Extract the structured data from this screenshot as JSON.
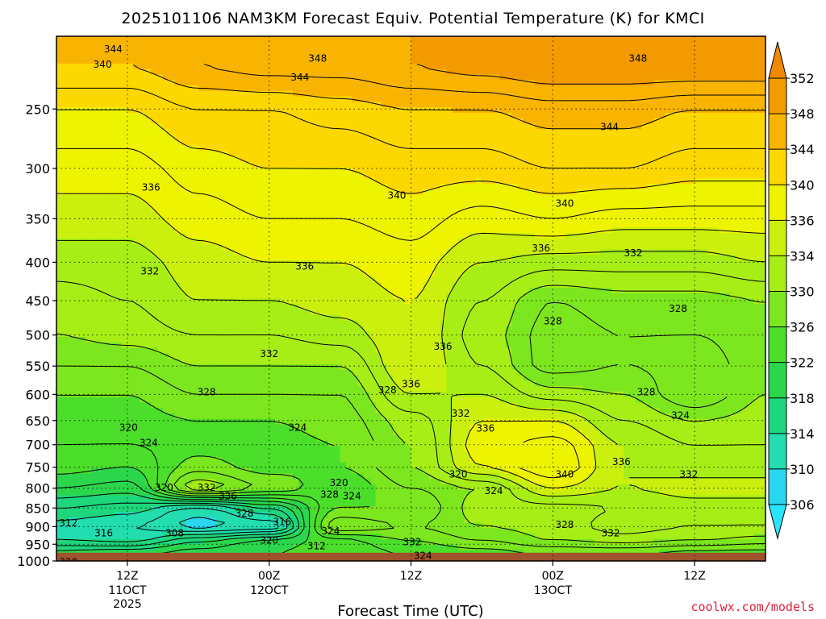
{
  "chart_data": {
    "type": "heatmap",
    "title": "2025101106 NAM3KM Forecast Equiv. Potential Temperature (K) for KMCI",
    "xlabel": "Forecast Time (UTC)",
    "ylabel": "",
    "y_scale": "log",
    "y_inverted": true,
    "ylim": [
      1000,
      200
    ],
    "y_ticks": [
      250,
      300,
      350,
      400,
      450,
      500,
      550,
      600,
      650,
      700,
      750,
      800,
      850,
      900,
      950,
      1000
    ],
    "y_tick_labels": [
      "250",
      "300",
      "350",
      "400",
      "450",
      "500",
      "550",
      "600",
      "650",
      "700",
      "750",
      "800",
      "850",
      "900",
      "950",
      "1000"
    ],
    "x_ticks": [
      {
        "hours": 6,
        "label": "12Z",
        "sublabel": "11OCT",
        "year": "2025"
      },
      {
        "hours": 18,
        "label": "00Z",
        "sublabel": "12OCT",
        "year": ""
      },
      {
        "hours": 30,
        "label": "12Z",
        "sublabel": "",
        "year": ""
      },
      {
        "hours": 42,
        "label": "00Z",
        "sublabel": "13OCT",
        "year": ""
      },
      {
        "hours": 54,
        "label": "12Z",
        "sublabel": "",
        "year": ""
      }
    ],
    "xlim": [
      0,
      60
    ],
    "grid": true,
    "colorbar": {
      "levels": [
        306,
        310,
        314,
        318,
        322,
        326,
        330,
        334,
        336,
        340,
        344,
        348,
        352
      ],
      "colors": [
        "#29e4ff",
        "#2ad5f0",
        "#23dcb0",
        "#1ed67c",
        "#2bd64c",
        "#4bde2a",
        "#7ce61e",
        "#a6ee16",
        "#cbf00e",
        "#eef400",
        "#fcd800",
        "#f8b400",
        "#f39a00",
        "#f08800"
      ]
    },
    "surface_color": "#a0522d",
    "surface_pressure": 975,
    "profiles": [
      {
        "hours": 0,
        "pressure": [
          975,
          940,
          900,
          850,
          800,
          750,
          700,
          650,
          600,
          550,
          500,
          450,
          400,
          350,
          300,
          250,
          220
        ],
        "theta_e": [
          319,
          314,
          313,
          316,
          320,
          323,
          324,
          325,
          326,
          328,
          330,
          331,
          333,
          335,
          337,
          340,
          344
        ]
      },
      {
        "hours": 6,
        "pressure": [
          975,
          940,
          900,
          850,
          800,
          750,
          700,
          650,
          600,
          550,
          500,
          450,
          400,
          350,
          300,
          250,
          220
        ],
        "theta_e": [
          320,
          313,
          312,
          315,
          319,
          322,
          324,
          325,
          326,
          328,
          331,
          332,
          333,
          335,
          337,
          340,
          344
        ]
      },
      {
        "hours": 12,
        "pressure": [
          975,
          940,
          900,
          850,
          800,
          750,
          700,
          650,
          600,
          550,
          500,
          450,
          400,
          350,
          300,
          250,
          220
        ],
        "theta_e": [
          321,
          318,
          309,
          311,
          332,
          327,
          325,
          326,
          328,
          330,
          332,
          334,
          335,
          337,
          339,
          342,
          346
        ]
      },
      {
        "hours": 18,
        "pressure": [
          975,
          940,
          900,
          850,
          800,
          750,
          700,
          650,
          600,
          550,
          500,
          450,
          400,
          350,
          300,
          250,
          220
        ],
        "theta_e": [
          322,
          321,
          310,
          316,
          328,
          325,
          325,
          326,
          328,
          330,
          332,
          334,
          336,
          338,
          340,
          342,
          347
        ]
      },
      {
        "hours": 24,
        "pressure": [
          975,
          940,
          900,
          850,
          800,
          750,
          700,
          650,
          600,
          550,
          500,
          450,
          400,
          350,
          300,
          250,
          220
        ],
        "theta_e": [
          323,
          323,
          330,
          326,
          324,
          326,
          326,
          327,
          328,
          330,
          333,
          335,
          336,
          338,
          340,
          343,
          347
        ]
      },
      {
        "hours": 30,
        "pressure": [
          975,
          940,
          900,
          850,
          800,
          750,
          700,
          650,
          600,
          550,
          500,
          450,
          400,
          350,
          300,
          250,
          220
        ],
        "theta_e": [
          324,
          326,
          328,
          326,
          328,
          330,
          330,
          331,
          334,
          336,
          336,
          336,
          337,
          339,
          341,
          344,
          348
        ]
      },
      {
        "hours": 36,
        "pressure": [
          975,
          940,
          900,
          850,
          800,
          750,
          700,
          650,
          600,
          550,
          500,
          450,
          400,
          350,
          300,
          250,
          220
        ],
        "theta_e": [
          325,
          328,
          330,
          331,
          330,
          336,
          337,
          336,
          334,
          332,
          331,
          332,
          334,
          337,
          341,
          344,
          349
        ]
      },
      {
        "hours": 42,
        "pressure": [
          975,
          940,
          900,
          850,
          800,
          750,
          700,
          650,
          600,
          550,
          500,
          450,
          400,
          350,
          300,
          250,
          220
        ],
        "theta_e": [
          326,
          330,
          331,
          331,
          336,
          340,
          339,
          336,
          331,
          327,
          327,
          328,
          333,
          338,
          342,
          345,
          350
        ]
      },
      {
        "hours": 48,
        "pressure": [
          975,
          940,
          900,
          850,
          800,
          750,
          700,
          650,
          600,
          550,
          500,
          450,
          400,
          350,
          300,
          250,
          220
        ],
        "theta_e": [
          326,
          331,
          333,
          332,
          334,
          334,
          334,
          332,
          330,
          328,
          328,
          329,
          333,
          337,
          342,
          345,
          350
        ]
      },
      {
        "hours": 54,
        "pressure": [
          975,
          940,
          900,
          850,
          800,
          750,
          700,
          650,
          600,
          550,
          500,
          450,
          400,
          350,
          300,
          250,
          220
        ],
        "theta_e": [
          325,
          330,
          332,
          333,
          335,
          333,
          332,
          330,
          326,
          327,
          328,
          329,
          333,
          337,
          341,
          344,
          350
        ]
      },
      {
        "hours": 60,
        "pressure": [
          975,
          940,
          900,
          850,
          800,
          750,
          700,
          650,
          600,
          550,
          500,
          450,
          400,
          350,
          300,
          250,
          220
        ],
        "theta_e": [
          325,
          329,
          332,
          333,
          335,
          333,
          332,
          331,
          330,
          329,
          329,
          330,
          334,
          337,
          341,
          344,
          350
        ]
      }
    ],
    "contour_labels": [
      {
        "text": "344",
        "hours": 4.8,
        "pressure": 208
      },
      {
        "text": "340",
        "hours": 3.9,
        "pressure": 218
      },
      {
        "text": "348",
        "hours": 22.1,
        "pressure": 214
      },
      {
        "text": "344",
        "hours": 20.6,
        "pressure": 227
      },
      {
        "text": "348",
        "hours": 49.2,
        "pressure": 214
      },
      {
        "text": "344",
        "hours": 46.8,
        "pressure": 264
      },
      {
        "text": "336",
        "hours": 8.0,
        "pressure": 318
      },
      {
        "text": "340",
        "hours": 28.8,
        "pressure": 326
      },
      {
        "text": "340",
        "hours": 43.0,
        "pressure": 334
      },
      {
        "text": "336",
        "hours": 41.0,
        "pressure": 383
      },
      {
        "text": "332",
        "hours": 48.8,
        "pressure": 389
      },
      {
        "text": "332",
        "hours": 7.9,
        "pressure": 411
      },
      {
        "text": "336",
        "hours": 21.0,
        "pressure": 405
      },
      {
        "text": "328",
        "hours": 52.6,
        "pressure": 461
      },
      {
        "text": "328",
        "hours": 42.0,
        "pressure": 479
      },
      {
        "text": "336",
        "hours": 32.7,
        "pressure": 518
      },
      {
        "text": "332",
        "hours": 18.0,
        "pressure": 530
      },
      {
        "text": "336",
        "hours": 30.0,
        "pressure": 581
      },
      {
        "text": "328",
        "hours": 12.7,
        "pressure": 596
      },
      {
        "text": "328",
        "hours": 28.0,
        "pressure": 592
      },
      {
        "text": "328",
        "hours": 49.9,
        "pressure": 596
      },
      {
        "text": "324",
        "hours": 52.8,
        "pressure": 640
      },
      {
        "text": "332",
        "hours": 34.2,
        "pressure": 636
      },
      {
        "text": "320",
        "hours": 6.1,
        "pressure": 664
      },
      {
        "text": "324",
        "hours": 20.4,
        "pressure": 664
      },
      {
        "text": "336",
        "hours": 36.3,
        "pressure": 666
      },
      {
        "text": "324",
        "hours": 7.8,
        "pressure": 696
      },
      {
        "text": "336",
        "hours": 47.8,
        "pressure": 738
      },
      {
        "text": "340",
        "hours": 43.0,
        "pressure": 767
      },
      {
        "text": "332",
        "hours": 53.5,
        "pressure": 767
      },
      {
        "text": "320",
        "hours": 34.0,
        "pressure": 767
      },
      {
        "text": "320",
        "hours": 23.9,
        "pressure": 787
      },
      {
        "text": "320",
        "hours": 9.1,
        "pressure": 799
      },
      {
        "text": "332",
        "hours": 12.7,
        "pressure": 799
      },
      {
        "text": "336",
        "hours": 14.5,
        "pressure": 820
      },
      {
        "text": "328",
        "hours": 23.1,
        "pressure": 815
      },
      {
        "text": "324",
        "hours": 25.0,
        "pressure": 820
      },
      {
        "text": "324",
        "hours": 37.0,
        "pressure": 806
      },
      {
        "text": "328",
        "hours": 15.9,
        "pressure": 864
      },
      {
        "text": "316",
        "hours": 19.1,
        "pressure": 887
      },
      {
        "text": "312",
        "hours": 1.0,
        "pressure": 890
      },
      {
        "text": "316",
        "hours": 4.0,
        "pressure": 918
      },
      {
        "text": "308",
        "hours": 10.0,
        "pressure": 918
      },
      {
        "text": "324",
        "hours": 23.2,
        "pressure": 913
      },
      {
        "text": "328",
        "hours": 43.0,
        "pressure": 895
      },
      {
        "text": "332",
        "hours": 46.9,
        "pressure": 918
      },
      {
        "text": "332",
        "hours": 30.1,
        "pressure": 944
      },
      {
        "text": "320",
        "hours": 18.0,
        "pressure": 939
      },
      {
        "text": "312",
        "hours": 22.0,
        "pressure": 955
      },
      {
        "text": "324",
        "hours": 31.0,
        "pressure": 984
      },
      {
        "text": "320",
        "hours": 1.0,
        "pressure": 1004
      }
    ]
  },
  "credit": "coolwx.com/models"
}
